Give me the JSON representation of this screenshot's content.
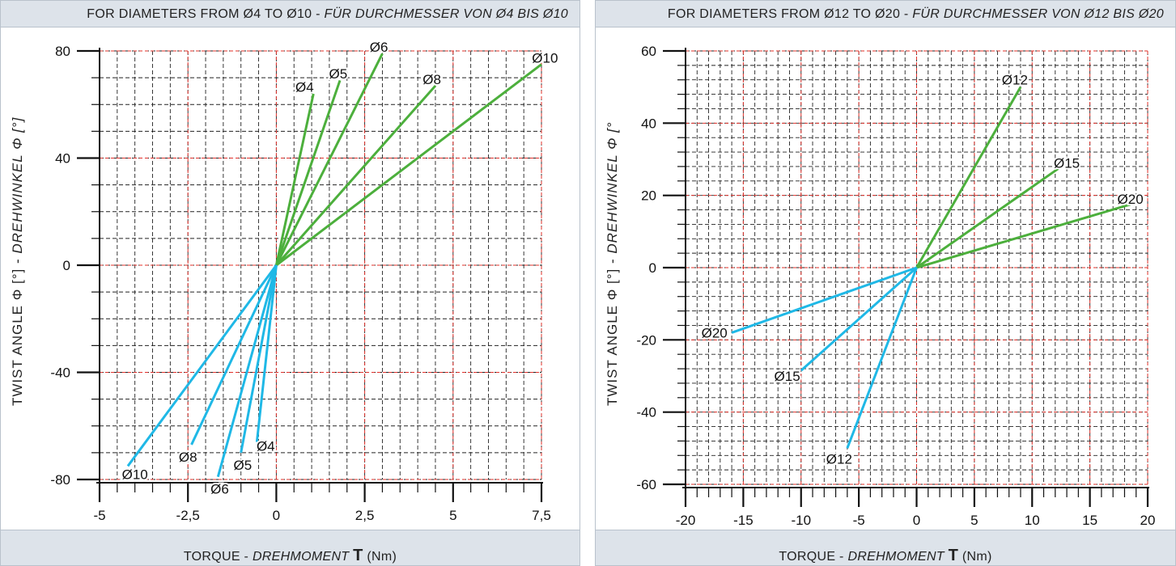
{
  "chart_data": [
    {
      "type": "line",
      "title": "FOR DIAMETERS FROM Ø4 TO Ø10",
      "title_italic": "FÜR DURCHMESSER VON Ø4 BIS Ø10",
      "title_sep": " - ",
      "xlabel": "TORQUE",
      "xlabel_italic": "DREHMOMENT",
      "xlabel_symbol": "T",
      "xlabel_unit": "(Nm)",
      "ylabel": "TWIST ANGLE Φ [°]",
      "ylabel_italic": "DREHWINKEL Φ [°]",
      "xlim": [
        -5,
        7.5
      ],
      "ylim": [
        -80,
        80
      ],
      "x_ticks": [
        -5,
        -2.5,
        0,
        2.5,
        5,
        7.5
      ],
      "x_tick_labels": [
        "-5",
        "-2,5",
        "0",
        "2,5",
        "5",
        "7,5"
      ],
      "y_ticks": [
        -80,
        -40,
        0,
        40,
        80
      ],
      "y_tick_labels": [
        "-80",
        "-40",
        "0",
        "40",
        "80"
      ],
      "grid": true,
      "series": [
        {
          "name": "Ø4",
          "color": "#4caf3c",
          "x": [
            0,
            1.05
          ],
          "y": [
            0,
            64
          ]
        },
        {
          "name": "Ø5",
          "color": "#4caf3c",
          "x": [
            0,
            1.8
          ],
          "y": [
            0,
            69
          ]
        },
        {
          "name": "Ø6",
          "color": "#4caf3c",
          "x": [
            0,
            3.0
          ],
          "y": [
            0,
            79
          ]
        },
        {
          "name": "Ø8",
          "color": "#4caf3c",
          "x": [
            0,
            4.5
          ],
          "y": [
            0,
            67
          ]
        },
        {
          "name": "Ø10",
          "color": "#4caf3c",
          "x": [
            0,
            7.5
          ],
          "y": [
            0,
            75
          ]
        },
        {
          "name": "Ø4",
          "color": "#1fb8e6",
          "x": [
            0,
            -0.55
          ],
          "y": [
            0,
            -66
          ]
        },
        {
          "name": "Ø5",
          "color": "#1fb8e6",
          "x": [
            0,
            -1.0
          ],
          "y": [
            0,
            -70
          ]
        },
        {
          "name": "Ø6",
          "color": "#1fb8e6",
          "x": [
            0,
            -1.65
          ],
          "y": [
            0,
            -79
          ]
        },
        {
          "name": "Ø8",
          "color": "#1fb8e6",
          "x": [
            0,
            -2.4
          ],
          "y": [
            0,
            -67
          ]
        },
        {
          "name": "Ø10",
          "color": "#1fb8e6",
          "x": [
            0,
            -4.2
          ],
          "y": [
            0,
            -75
          ]
        }
      ],
      "labels": [
        {
          "text": "Ø4",
          "x": 0.8,
          "y": 66.5
        },
        {
          "text": "Ø5",
          "x": 1.75,
          "y": 71.5
        },
        {
          "text": "Ø6",
          "x": 2.9,
          "y": 81.5
        },
        {
          "text": "Ø8",
          "x": 4.4,
          "y": 69.5
        },
        {
          "text": "Ø10",
          "x": 7.6,
          "y": 77.5
        },
        {
          "text": "Ø4",
          "x": -0.3,
          "y": -67.5
        },
        {
          "text": "Ø5",
          "x": -0.95,
          "y": -74.5
        },
        {
          "text": "Ø6",
          "x": -1.6,
          "y": -83.5
        },
        {
          "text": "Ø8",
          "x": -2.5,
          "y": -71.5
        },
        {
          "text": "Ø10",
          "x": -4.0,
          "y": -78
        }
      ]
    },
    {
      "type": "line",
      "title": "FOR DIAMETERS FROM Ø12 TO Ø20",
      "title_italic": "FÜR DURCHMESSER VON Ø12 BIS Ø20",
      "title_sep": " - ",
      "xlabel": "TORQUE",
      "xlabel_italic": "DREHMOMENT",
      "xlabel_symbol": "T",
      "xlabel_unit": "(Nm)",
      "ylabel": "TWIST ANGLE Φ [°]",
      "ylabel_italic": "DREHWINKEL Φ [°",
      "xlim": [
        -20,
        20
      ],
      "ylim": [
        -60,
        60
      ],
      "x_ticks": [
        -20,
        -15,
        -10,
        -5,
        0,
        5,
        10,
        15,
        20
      ],
      "x_tick_labels": [
        "-20",
        "-15",
        "-10",
        "-5",
        "0",
        "5",
        "10",
        "15",
        "20"
      ],
      "y_ticks": [
        -60,
        -40,
        -20,
        0,
        20,
        40,
        60
      ],
      "y_tick_labels": [
        "-60",
        "-40",
        "-20",
        "0",
        "20",
        "40",
        "60"
      ],
      "grid": true,
      "series": [
        {
          "name": "Ø12",
          "color": "#4caf3c",
          "x": [
            0,
            9
          ],
          "y": [
            0,
            50
          ]
        },
        {
          "name": "Ø15",
          "color": "#4caf3c",
          "x": [
            0,
            12.3
          ],
          "y": [
            0,
            27.5
          ]
        },
        {
          "name": "Ø20",
          "color": "#4caf3c",
          "x": [
            0,
            18.5
          ],
          "y": [
            0,
            17.5
          ]
        },
        {
          "name": "Ø12",
          "color": "#1fb8e6",
          "x": [
            0,
            -6
          ],
          "y": [
            0,
            -50
          ]
        },
        {
          "name": "Ø15",
          "color": "#1fb8e6",
          "x": [
            0,
            -10
          ],
          "y": [
            0,
            -28.5
          ]
        },
        {
          "name": "Ø20",
          "color": "#1fb8e6",
          "x": [
            0,
            -16
          ],
          "y": [
            0,
            -18
          ]
        }
      ],
      "labels": [
        {
          "text": "Ø12",
          "x": 8.5,
          "y": 52
        },
        {
          "text": "Ø15",
          "x": 13,
          "y": 29
        },
        {
          "text": "Ø20",
          "x": 18.5,
          "y": 19
        },
        {
          "text": "Ø12",
          "x": -6.7,
          "y": -53
        },
        {
          "text": "Ø15",
          "x": -11.2,
          "y": -30
        },
        {
          "text": "Ø20",
          "x": -17.5,
          "y": -18
        }
      ]
    }
  ]
}
